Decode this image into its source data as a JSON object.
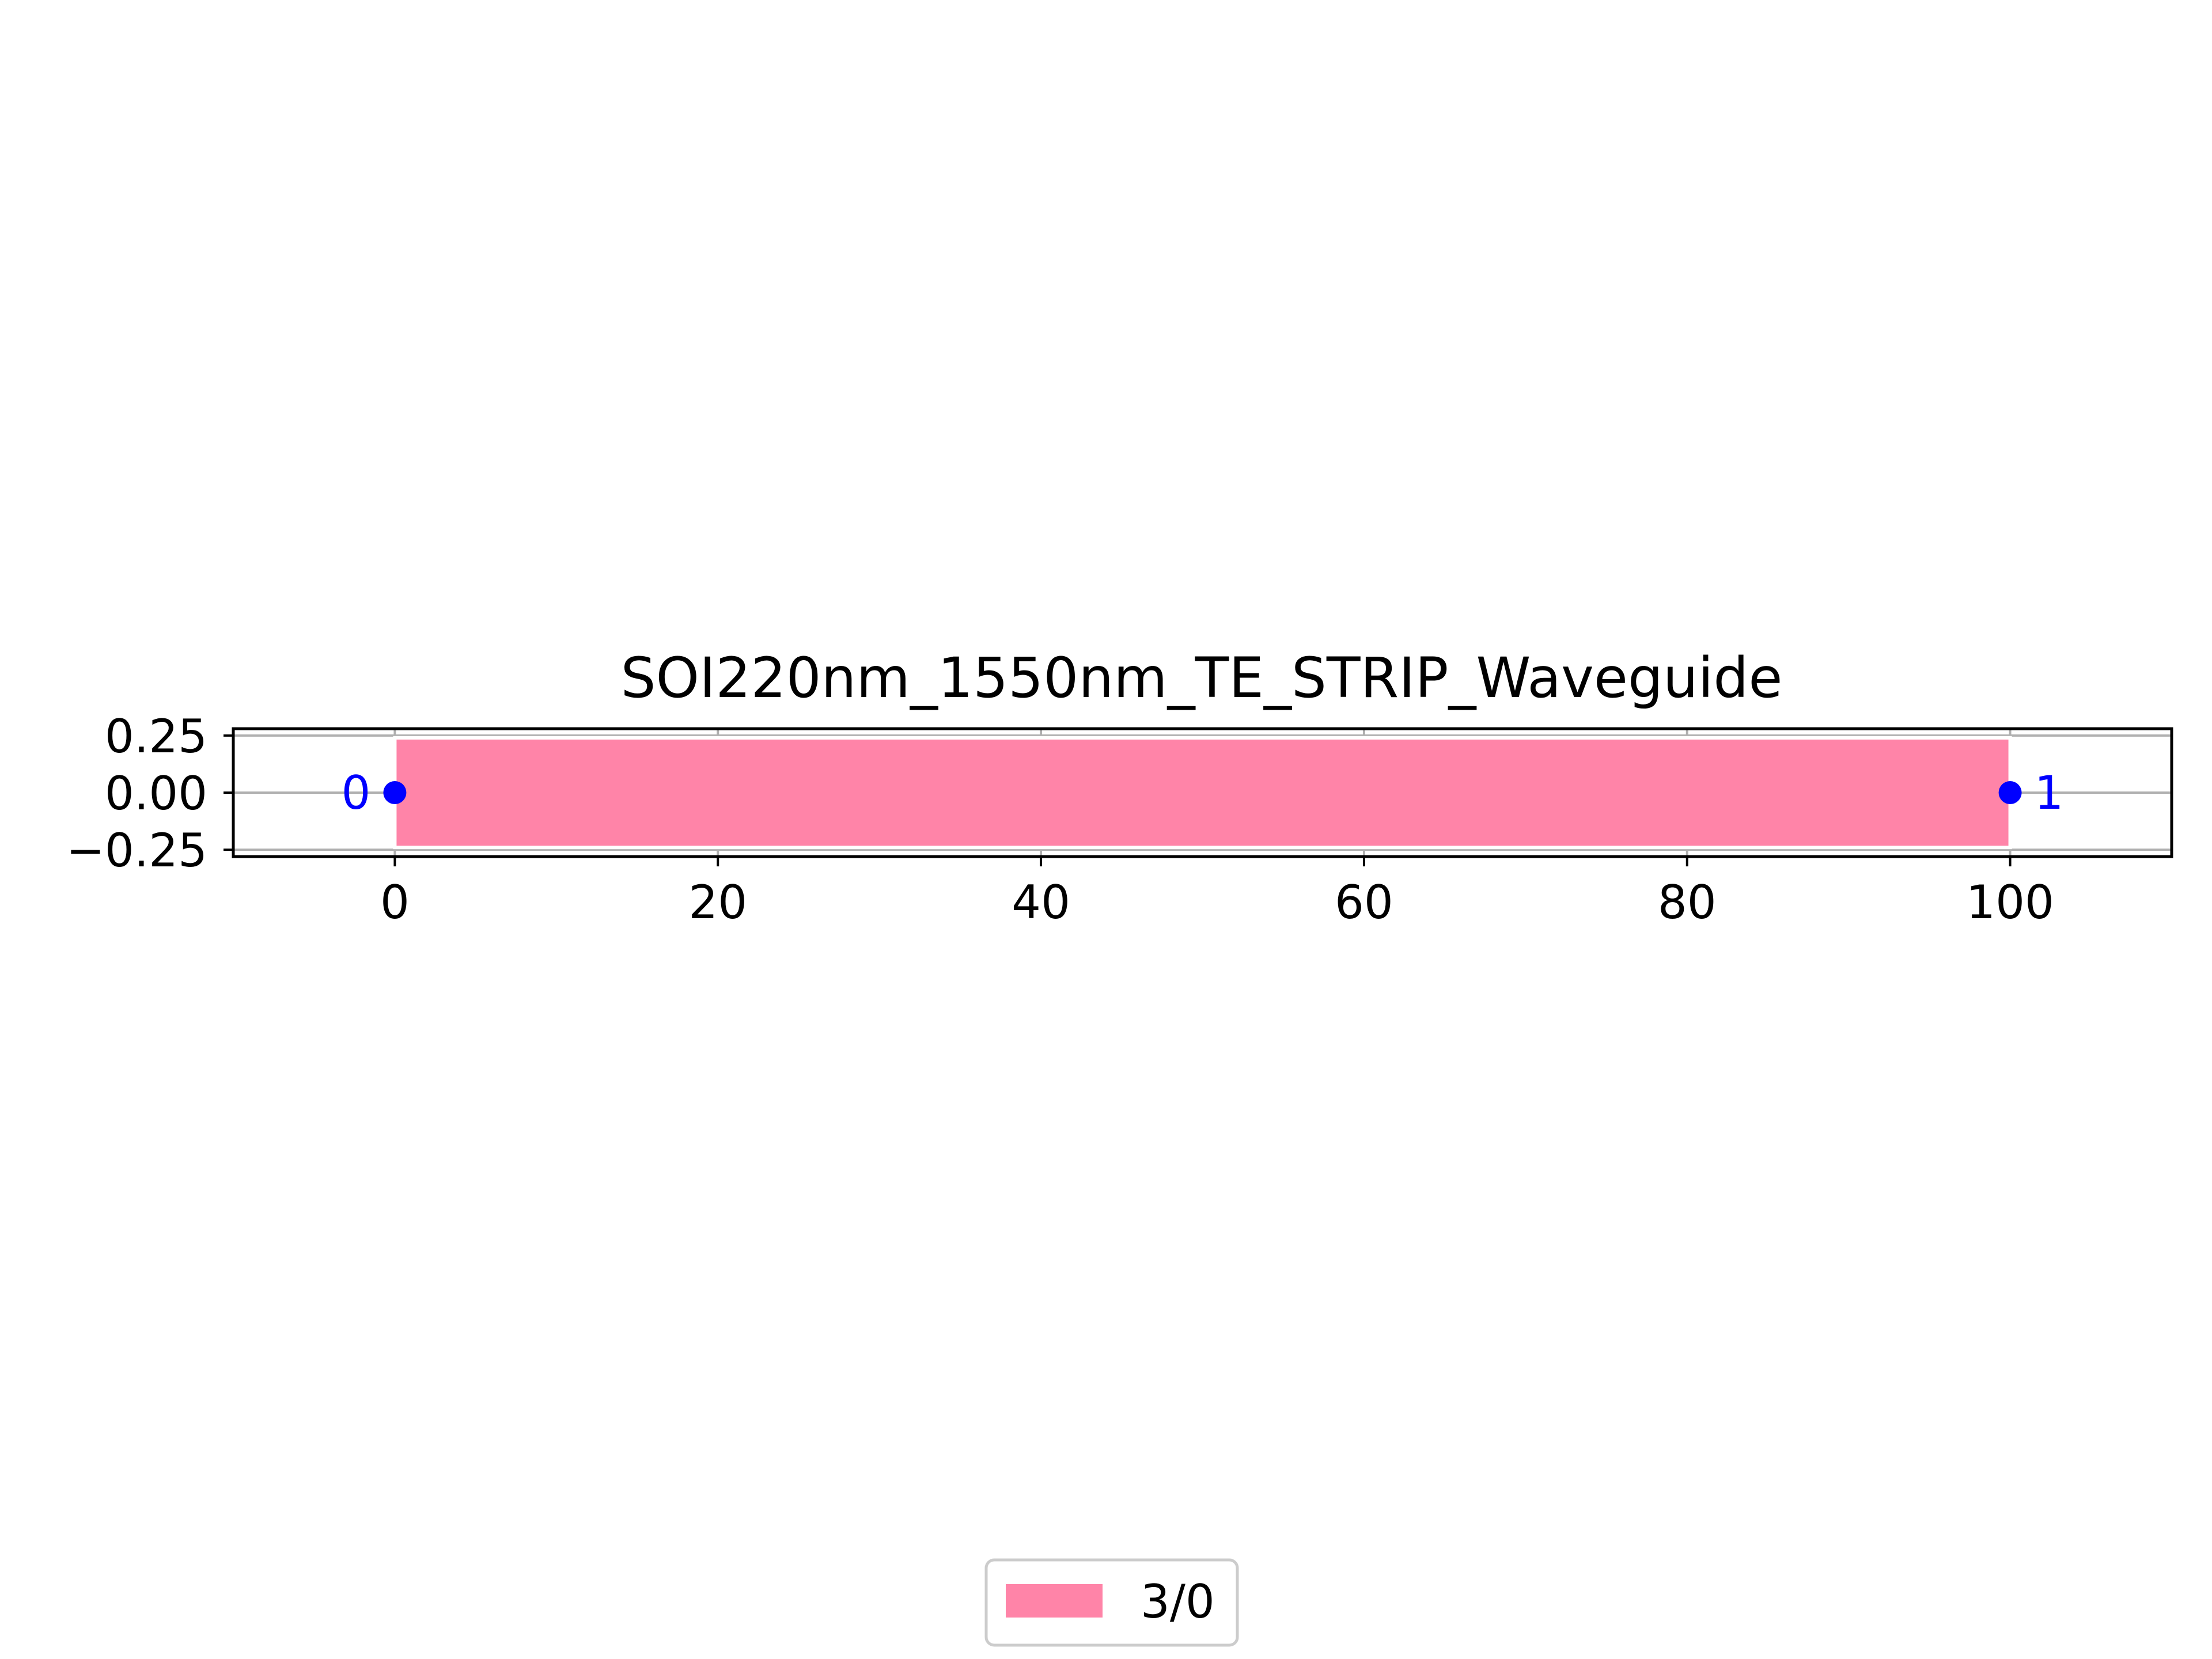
{
  "chart_data": {
    "type": "layout",
    "title": "SOI220nm_1550nm_TE_STRIP_Waveguide",
    "xlabel": "",
    "ylabel": "",
    "xlim": [
      -10,
      110
    ],
    "ylim": [
      -0.28,
      0.28
    ],
    "x_ticks": [
      0,
      20,
      40,
      60,
      80,
      100
    ],
    "x_tick_labels": [
      "0",
      "20",
      "40",
      "60",
      "80",
      "100"
    ],
    "y_ticks": [
      0.25,
      0,
      -0.25
    ],
    "y_tick_labels": [
      "0.25",
      "0.00",
      "−0.25"
    ],
    "grid": true,
    "waveguide": {
      "layer": "3/0",
      "x_start": 0,
      "x_end": 100,
      "y_min": -0.24,
      "y_max": 0.24,
      "color": "#ff84a8"
    },
    "ports": [
      {
        "label": "0",
        "x": 0,
        "y": 0,
        "label_side": "left"
      },
      {
        "label": "1",
        "x": 100,
        "y": 0,
        "label_side": "right"
      }
    ],
    "port_color": "#0000ff",
    "legend": {
      "placement": "bottom-center",
      "entries": [
        {
          "label": "3/0",
          "color": "#ff84a8"
        }
      ]
    }
  }
}
